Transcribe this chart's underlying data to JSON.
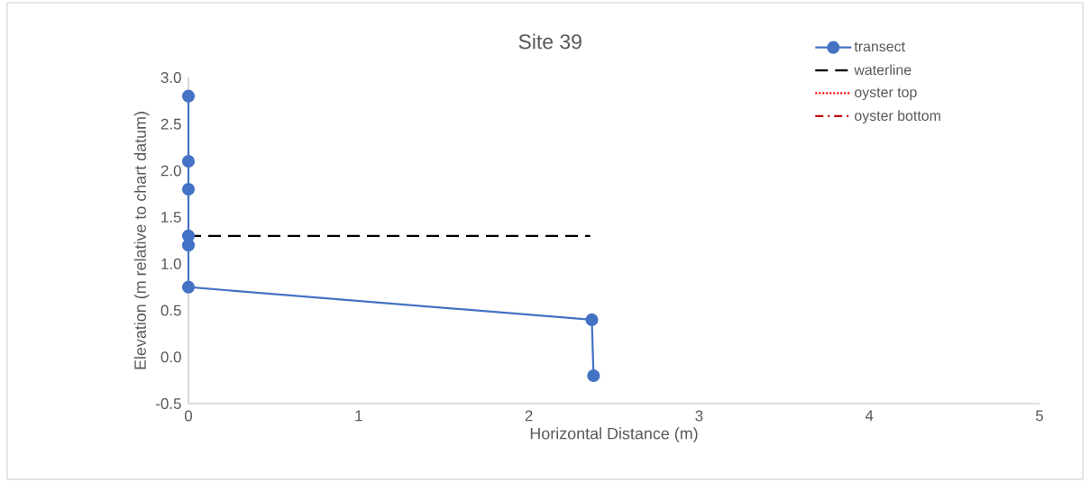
{
  "chart_data": {
    "type": "line",
    "title": "Site 39",
    "xlabel": "Horizontal Distance (m)",
    "ylabel": "Elevation (m relative to chart datum)",
    "xlim": [
      0,
      5
    ],
    "ylim": [
      -0.5,
      3.0
    ],
    "xticks": [
      0,
      1,
      2,
      3,
      4,
      5
    ],
    "yticks": [
      -0.5,
      {
        "value": 0,
        "label": "0.0"
      },
      0.5,
      {
        "value": 1,
        "label": "1.0"
      },
      1.5,
      {
        "value": 2,
        "label": "2.0"
      },
      2.5,
      {
        "value": 3,
        "label": "3.0"
      }
    ],
    "grid": false,
    "legend": "top right",
    "series": [
      {
        "name": "transect",
        "color": "#4472c4",
        "marker": "circle",
        "line_style": "solid",
        "x": [
          0,
          0,
          0,
          0,
          0,
          0,
          2.37,
          2.38
        ],
        "values": [
          2.8,
          2.1,
          1.8,
          1.3,
          1.2,
          0.75,
          0.4,
          -0.2
        ]
      },
      {
        "name": "waterline",
        "color": "#000000",
        "marker": "none",
        "line_style": "dashed",
        "x": [
          0,
          2.36
        ],
        "values": [
          1.3,
          1.3
        ]
      },
      {
        "name": "oyster top",
        "color": "#ff0000",
        "marker": "none",
        "line_style": "dotted"
      },
      {
        "name": "oyster bottom",
        "color": "#c00000",
        "marker": "none",
        "line_style": "dashdot"
      }
    ]
  }
}
